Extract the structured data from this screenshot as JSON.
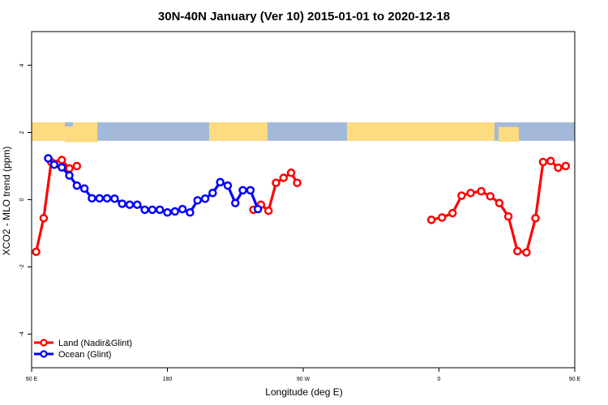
{
  "chart_data": {
    "type": "line",
    "title": "30N-40N January (Ver 10)   2015-01-01 to 2020-12-18",
    "xlabel": "Longitude (deg E)",
    "ylabel": "XCO2 - MLO trend (ppm)",
    "xlim": [
      90,
      450
    ],
    "ylim": [
      -5,
      5
    ],
    "xticks": [
      {
        "value": 90,
        "label": "90 E"
      },
      {
        "value": 180,
        "label": "180"
      },
      {
        "value": 270,
        "label": "90 W"
      },
      {
        "value": 360,
        "label": "0"
      },
      {
        "value": 450,
        "label": "90 E"
      },
      {
        "value": 540,
        "label": "180"
      }
    ],
    "yticks": [
      {
        "value": -4,
        "label": "-4"
      },
      {
        "value": -2,
        "label": "-2"
      },
      {
        "value": 0,
        "label": "0"
      },
      {
        "value": 2,
        "label": "2"
      },
      {
        "value": 4,
        "label": "4"
      }
    ],
    "legend_position": "bottom-left",
    "map_band": {
      "ylim": [
        1.75,
        2.3
      ],
      "ocean_color": "#a4b9d9",
      "land_color": "#fddb80"
    },
    "series": [
      {
        "name": "Land (Nadir&Glint)",
        "color": "#ff0000",
        "segments": [
          {
            "x": [
              93,
              98,
              103,
              110,
              115,
              120
            ],
            "y": [
              -1.55,
              -0.55,
              1.12,
              1.18,
              0.93,
              1.0
            ]
          },
          {
            "x": [
              237,
              242,
              247,
              252,
              257,
              262,
              266
            ],
            "y": [
              -0.3,
              -0.15,
              -0.33,
              0.5,
              0.65,
              0.8,
              0.5
            ]
          },
          {
            "x": [
              355,
              362,
              369,
              375,
              381,
              388,
              394,
              400,
              406,
              412,
              418,
              424,
              429,
              434,
              439,
              444
            ],
            "y": [
              -0.6,
              -0.53,
              -0.4,
              0.12,
              0.2,
              0.25,
              0.1,
              -0.1,
              -0.5,
              -1.53,
              -1.57,
              -0.55,
              1.12,
              1.15,
              0.95,
              1.0
            ]
          }
        ]
      },
      {
        "name": "Ocean (Glint)",
        "color": "#0000ff",
        "segments": [
          {
            "x": [
              101,
              105,
              110,
              115,
              120,
              125,
              130,
              135,
              140,
              145,
              150,
              155,
              160,
              165,
              170,
              175,
              180,
              185,
              190,
              195,
              200,
              205,
              210,
              215,
              220,
              225,
              230,
              235,
              240
            ],
            "y": [
              1.23,
              1.04,
              0.96,
              0.72,
              0.42,
              0.33,
              0.04,
              0.04,
              0.04,
              0.03,
              -0.12,
              -0.15,
              -0.15,
              -0.3,
              -0.3,
              -0.3,
              -0.38,
              -0.35,
              -0.28,
              -0.38,
              -0.02,
              0.03,
              0.2,
              0.52,
              0.42,
              -0.1,
              0.28,
              0.28,
              -0.28
            ]
          }
        ]
      }
    ]
  }
}
